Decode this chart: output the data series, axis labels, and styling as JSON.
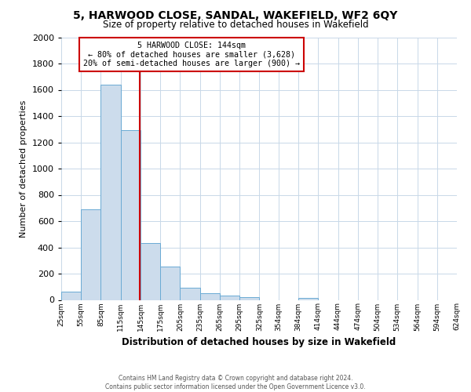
{
  "title": "5, HARWOOD CLOSE, SANDAL, WAKEFIELD, WF2 6QY",
  "subtitle": "Size of property relative to detached houses in Wakefield",
  "xlabel": "Distribution of detached houses by size in Wakefield",
  "ylabel": "Number of detached properties",
  "bar_color": "#ccdcec",
  "bar_edge_color": "#6aaad4",
  "bins": [
    25,
    55,
    85,
    115,
    145,
    175,
    205,
    235,
    265,
    295,
    325,
    354,
    384,
    414,
    444,
    474,
    504,
    534,
    564,
    594,
    624
  ],
  "values": [
    65,
    690,
    1640,
    1290,
    430,
    255,
    90,
    50,
    30,
    20,
    0,
    0,
    15,
    0,
    0,
    0,
    0,
    0,
    0,
    0
  ],
  "tick_labels": [
    "25sqm",
    "55sqm",
    "85sqm",
    "115sqm",
    "145sqm",
    "175sqm",
    "205sqm",
    "235sqm",
    "265sqm",
    "295sqm",
    "325sqm",
    "354sqm",
    "384sqm",
    "414sqm",
    "444sqm",
    "474sqm",
    "504sqm",
    "534sqm",
    "564sqm",
    "594sqm",
    "624sqm"
  ],
  "ylim": [
    0,
    2000
  ],
  "yticks": [
    0,
    200,
    400,
    600,
    800,
    1000,
    1200,
    1400,
    1600,
    1800,
    2000
  ],
  "vline_x": 144,
  "vline_color": "#cc0000",
  "annotation_title": "5 HARWOOD CLOSE: 144sqm",
  "annotation_line1": "← 80% of detached houses are smaller (3,628)",
  "annotation_line2": "20% of semi-detached houses are larger (900) →",
  "annotation_box_color": "#ffffff",
  "annotation_box_edge": "#cc0000",
  "footer1": "Contains HM Land Registry data © Crown copyright and database right 2024.",
  "footer2": "Contains public sector information licensed under the Open Government Licence v3.0.",
  "background_color": "#ffffff",
  "grid_color": "#c8d8e8"
}
